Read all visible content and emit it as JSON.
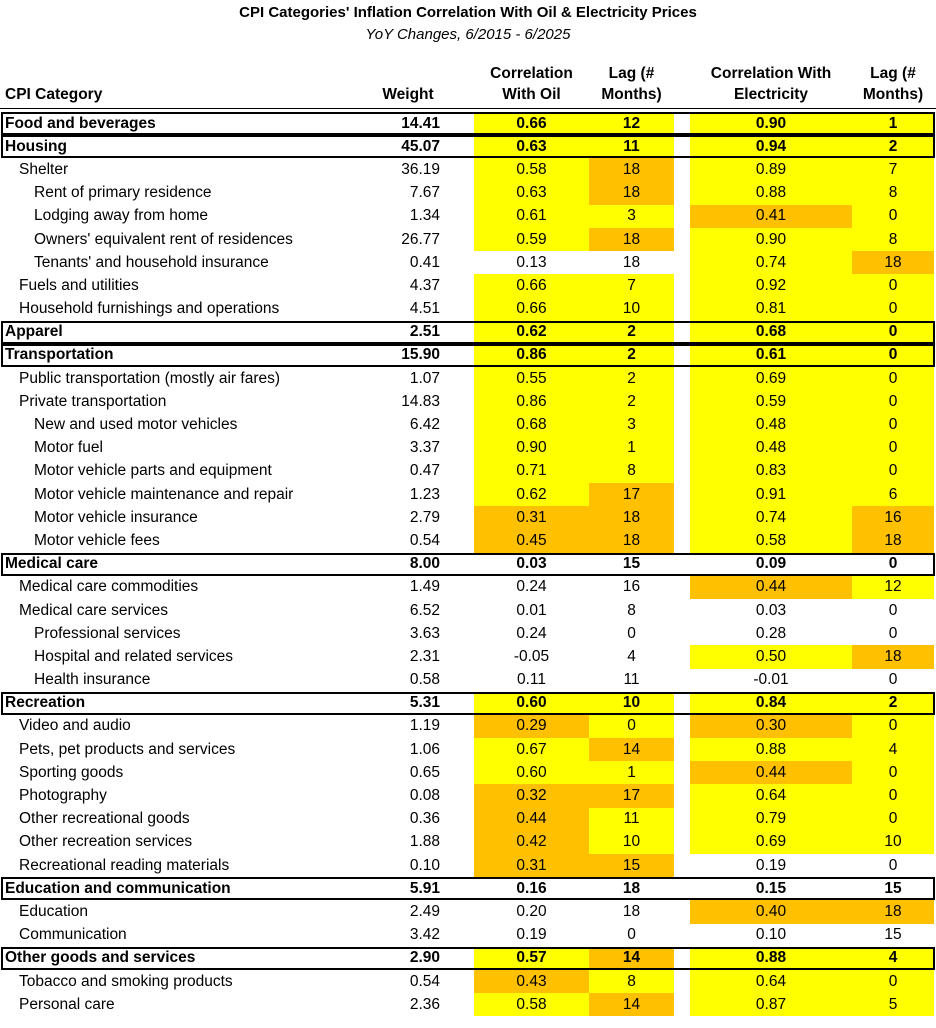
{
  "title": "CPI Categories' Inflation Correlation With Oil & Electricity Prices",
  "subtitle": "YoY Changes, 6/2015 - 6/2025",
  "headers": {
    "category": "CPI Category",
    "weight": "Weight",
    "corr_oil_1": "Correlation",
    "corr_oil_2": "With Oil",
    "lag_oil_1": "Lag (#",
    "lag_oil_2": "Months)",
    "corr_elec_1": "Correlation With",
    "corr_elec_2": "Electricity",
    "lag_elec_1": "Lag (#",
    "lag_elec_2": "Months)"
  },
  "colors": {
    "yellow": "#ffff00",
    "orange": "#ffc000"
  },
  "rows": [
    {
      "level": 0,
      "category": "Food and beverages",
      "weight": "14.41",
      "corr_oil": "0.66",
      "lag_oil": "12",
      "corr_elec": "0.90",
      "lag_elec": "1",
      "hl": [
        "y",
        "y",
        "y",
        "y"
      ]
    },
    {
      "level": 0,
      "category": "Housing",
      "weight": "45.07",
      "corr_oil": "0.63",
      "lag_oil": "11",
      "corr_elec": "0.94",
      "lag_elec": "2",
      "hl": [
        "y",
        "y",
        "y",
        "y"
      ]
    },
    {
      "level": 1,
      "category": "Shelter",
      "weight": "36.19",
      "corr_oil": "0.58",
      "lag_oil": "18",
      "corr_elec": "0.89",
      "lag_elec": "7",
      "hl": [
        "y",
        "o",
        "y",
        "y"
      ]
    },
    {
      "level": 2,
      "category": "Rent of primary residence",
      "weight": "7.67",
      "corr_oil": "0.63",
      "lag_oil": "18",
      "corr_elec": "0.88",
      "lag_elec": "8",
      "hl": [
        "y",
        "o",
        "y",
        "y"
      ]
    },
    {
      "level": 2,
      "category": "Lodging away from home",
      "weight": "1.34",
      "corr_oil": "0.61",
      "lag_oil": "3",
      "corr_elec": "0.41",
      "lag_elec": "0",
      "hl": [
        "y",
        "y",
        "o",
        "y"
      ]
    },
    {
      "level": 2,
      "category": "Owners' equivalent rent of residences",
      "weight": "26.77",
      "corr_oil": "0.59",
      "lag_oil": "18",
      "corr_elec": "0.90",
      "lag_elec": "8",
      "hl": [
        "y",
        "o",
        "y",
        "y"
      ]
    },
    {
      "level": 2,
      "category": "Tenants' and household insurance",
      "weight": "0.41",
      "corr_oil": "0.13",
      "lag_oil": "18",
      "corr_elec": "0.74",
      "lag_elec": "18",
      "hl": [
        "",
        "",
        "y",
        "o"
      ]
    },
    {
      "level": 1,
      "category": "Fuels and utilities",
      "weight": "4.37",
      "corr_oil": "0.66",
      "lag_oil": "7",
      "corr_elec": "0.92",
      "lag_elec": "0",
      "hl": [
        "y",
        "y",
        "y",
        "y"
      ]
    },
    {
      "level": 1,
      "category": "Household furnishings and operations",
      "weight": "4.51",
      "corr_oil": "0.66",
      "lag_oil": "10",
      "corr_elec": "0.81",
      "lag_elec": "0",
      "hl": [
        "y",
        "y",
        "y",
        "y"
      ]
    },
    {
      "level": 0,
      "category": "Apparel",
      "weight": "2.51",
      "corr_oil": "0.62",
      "lag_oil": "2",
      "corr_elec": "0.68",
      "lag_elec": "0",
      "hl": [
        "y",
        "y",
        "y",
        "y"
      ]
    },
    {
      "level": 0,
      "category": "Transportation",
      "weight": "15.90",
      "corr_oil": "0.86",
      "lag_oil": "2",
      "corr_elec": "0.61",
      "lag_elec": "0",
      "hl": [
        "y",
        "y",
        "y",
        "y"
      ]
    },
    {
      "level": 1,
      "category": "Public transportation (mostly air fares)",
      "weight": "1.07",
      "corr_oil": "0.55",
      "lag_oil": "2",
      "corr_elec": "0.69",
      "lag_elec": "0",
      "hl": [
        "y",
        "y",
        "y",
        "y"
      ]
    },
    {
      "level": 1,
      "category": "Private transportation",
      "weight": "14.83",
      "corr_oil": "0.86",
      "lag_oil": "2",
      "corr_elec": "0.59",
      "lag_elec": "0",
      "hl": [
        "y",
        "y",
        "y",
        "y"
      ]
    },
    {
      "level": 2,
      "category": "New and used motor vehicles",
      "weight": "6.42",
      "corr_oil": "0.68",
      "lag_oil": "3",
      "corr_elec": "0.48",
      "lag_elec": "0",
      "hl": [
        "y",
        "y",
        "y",
        "y"
      ]
    },
    {
      "level": 2,
      "category": "Motor fuel",
      "weight": "3.37",
      "corr_oil": "0.90",
      "lag_oil": "1",
      "corr_elec": "0.48",
      "lag_elec": "0",
      "hl": [
        "y",
        "y",
        "y",
        "y"
      ]
    },
    {
      "level": 2,
      "category": "Motor vehicle parts and equipment",
      "weight": "0.47",
      "corr_oil": "0.71",
      "lag_oil": "8",
      "corr_elec": "0.83",
      "lag_elec": "0",
      "hl": [
        "y",
        "y",
        "y",
        "y"
      ]
    },
    {
      "level": 2,
      "category": "Motor vehicle maintenance and repair",
      "weight": "1.23",
      "corr_oil": "0.62",
      "lag_oil": "17",
      "corr_elec": "0.91",
      "lag_elec": "6",
      "hl": [
        "y",
        "o",
        "y",
        "y"
      ]
    },
    {
      "level": 2,
      "category": "Motor vehicle insurance",
      "weight": "2.79",
      "corr_oil": "0.31",
      "lag_oil": "18",
      "corr_elec": "0.74",
      "lag_elec": "16",
      "hl": [
        "o",
        "o",
        "y",
        "o"
      ]
    },
    {
      "level": 2,
      "category": "Motor vehicle fees",
      "weight": "0.54",
      "corr_oil": "0.45",
      "lag_oil": "18",
      "corr_elec": "0.58",
      "lag_elec": "18",
      "hl": [
        "o",
        "o",
        "y",
        "o"
      ]
    },
    {
      "level": 0,
      "category": "Medical care",
      "weight": "8.00",
      "corr_oil": "0.03",
      "lag_oil": "15",
      "corr_elec": "0.09",
      "lag_elec": "0",
      "hl": [
        "",
        "",
        "",
        ""
      ]
    },
    {
      "level": 1,
      "category": "Medical care commodities",
      "weight": "1.49",
      "corr_oil": "0.24",
      "lag_oil": "16",
      "corr_elec": "0.44",
      "lag_elec": "12",
      "hl": [
        "",
        "",
        "o",
        "y"
      ]
    },
    {
      "level": 1,
      "category": "Medical care services",
      "weight": "6.52",
      "corr_oil": "0.01",
      "lag_oil": "8",
      "corr_elec": "0.03",
      "lag_elec": "0",
      "hl": [
        "",
        "",
        "",
        ""
      ]
    },
    {
      "level": 2,
      "category": "Professional services",
      "weight": "3.63",
      "corr_oil": "0.24",
      "lag_oil": "0",
      "corr_elec": "0.28",
      "lag_elec": "0",
      "hl": [
        "",
        "",
        "",
        ""
      ]
    },
    {
      "level": 2,
      "category": "Hospital and related services",
      "weight": "2.31",
      "corr_oil": "-0.05",
      "lag_oil": "4",
      "corr_elec": "0.50",
      "lag_elec": "18",
      "hl": [
        "",
        "",
        "y",
        "o"
      ]
    },
    {
      "level": 2,
      "category": "Health insurance",
      "weight": "0.58",
      "corr_oil": "0.11",
      "lag_oil": "11",
      "corr_elec": "-0.01",
      "lag_elec": "0",
      "hl": [
        "",
        "",
        "",
        ""
      ]
    },
    {
      "level": 0,
      "category": "Recreation",
      "weight": "5.31",
      "corr_oil": "0.60",
      "lag_oil": "10",
      "corr_elec": "0.84",
      "lag_elec": "2",
      "hl": [
        "y",
        "y",
        "y",
        "y"
      ]
    },
    {
      "level": 1,
      "category": "Video and audio",
      "weight": "1.19",
      "corr_oil": "0.29",
      "lag_oil": "0",
      "corr_elec": "0.30",
      "lag_elec": "0",
      "hl": [
        "o",
        "y",
        "o",
        "y"
      ]
    },
    {
      "level": 1,
      "category": "Pets, pet products and services",
      "weight": "1.06",
      "corr_oil": "0.67",
      "lag_oil": "14",
      "corr_elec": "0.88",
      "lag_elec": "4",
      "hl": [
        "y",
        "o",
        "y",
        "y"
      ]
    },
    {
      "level": 1,
      "category": "Sporting goods",
      "weight": "0.65",
      "corr_oil": "0.60",
      "lag_oil": "1",
      "corr_elec": "0.44",
      "lag_elec": "0",
      "hl": [
        "y",
        "y",
        "o",
        "y"
      ]
    },
    {
      "level": 1,
      "category": "Photography",
      "weight": "0.08",
      "corr_oil": "0.32",
      "lag_oil": "17",
      "corr_elec": "0.64",
      "lag_elec": "0",
      "hl": [
        "o",
        "o",
        "y",
        "y"
      ]
    },
    {
      "level": 1,
      "category": "Other recreational goods",
      "weight": "0.36",
      "corr_oil": "0.44",
      "lag_oil": "11",
      "corr_elec": "0.79",
      "lag_elec": "0",
      "hl": [
        "o",
        "y",
        "y",
        "y"
      ]
    },
    {
      "level": 1,
      "category": "Other recreation services",
      "weight": "1.88",
      "corr_oil": "0.42",
      "lag_oil": "10",
      "corr_elec": "0.69",
      "lag_elec": "10",
      "hl": [
        "o",
        "y",
        "y",
        "y"
      ]
    },
    {
      "level": 1,
      "category": "Recreational reading materials",
      "weight": "0.10",
      "corr_oil": "0.31",
      "lag_oil": "15",
      "corr_elec": "0.19",
      "lag_elec": "0",
      "hl": [
        "o",
        "o",
        "",
        ""
      ]
    },
    {
      "level": 0,
      "category": "Education and communication",
      "weight": "5.91",
      "corr_oil": "0.16",
      "lag_oil": "18",
      "corr_elec": "0.15",
      "lag_elec": "15",
      "hl": [
        "",
        "",
        "",
        ""
      ]
    },
    {
      "level": 1,
      "category": "Education",
      "weight": "2.49",
      "corr_oil": "0.20",
      "lag_oil": "18",
      "corr_elec": "0.40",
      "lag_elec": "18",
      "hl": [
        "",
        "",
        "o",
        "o"
      ]
    },
    {
      "level": 1,
      "category": "Communication",
      "weight": "3.42",
      "corr_oil": "0.19",
      "lag_oil": "0",
      "corr_elec": "0.10",
      "lag_elec": "15",
      "hl": [
        "",
        "",
        "",
        ""
      ]
    },
    {
      "level": 0,
      "category": "Other goods and services",
      "weight": "2.90",
      "corr_oil": "0.57",
      "lag_oil": "14",
      "corr_elec": "0.88",
      "lag_elec": "4",
      "hl": [
        "y",
        "o",
        "y",
        "y"
      ]
    },
    {
      "level": 1,
      "category": "Tobacco and smoking products",
      "weight": "0.54",
      "corr_oil": "0.43",
      "lag_oil": "8",
      "corr_elec": "0.64",
      "lag_elec": "0",
      "hl": [
        "o",
        "y",
        "y",
        "y"
      ]
    },
    {
      "level": 1,
      "category": "Personal care",
      "weight": "2.36",
      "corr_oil": "0.58",
      "lag_oil": "14",
      "corr_elec": "0.87",
      "lag_elec": "5",
      "hl": [
        "y",
        "o",
        "y",
        "y"
      ]
    }
  ]
}
